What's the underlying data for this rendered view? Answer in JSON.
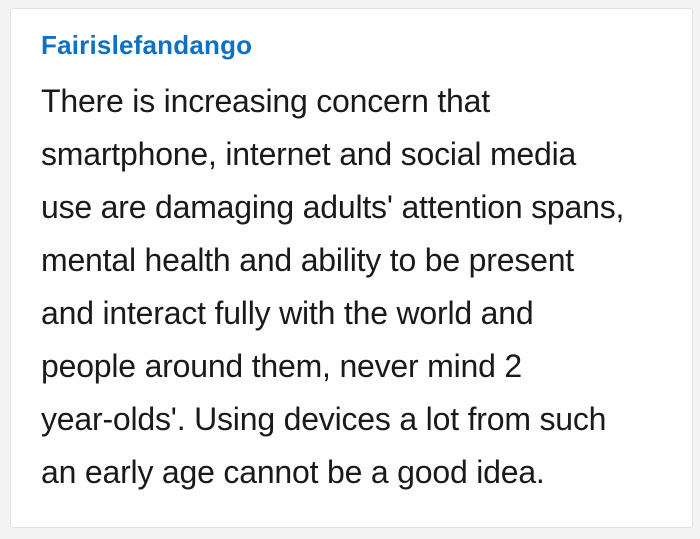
{
  "page": {
    "background_color": "#f4f4f5"
  },
  "card": {
    "background_color": "#fefefe",
    "border_color": "#e4e4e5"
  },
  "comment": {
    "username": "Fairislefandango",
    "username_color": "#0e71c2",
    "text_color": "#1a1a1a",
    "lines": [
      "There is increasing concern that",
      "smartphone, internet and social media",
      "use are damaging adults' attention spans,",
      "mental health and ability to be present",
      "and interact fully with the world and",
      "people around them, never mind 2",
      "year-olds'. Using devices a lot from such",
      "an early age cannot be a good idea."
    ],
    "full_text": "There is increasing concern that smartphone, internet and social media use are damaging adults' attention spans, mental health and ability to be present and interact fully with the world and people around them, never mind 2 year-olds'. Using devices a lot from such an early age cannot be a good idea."
  }
}
